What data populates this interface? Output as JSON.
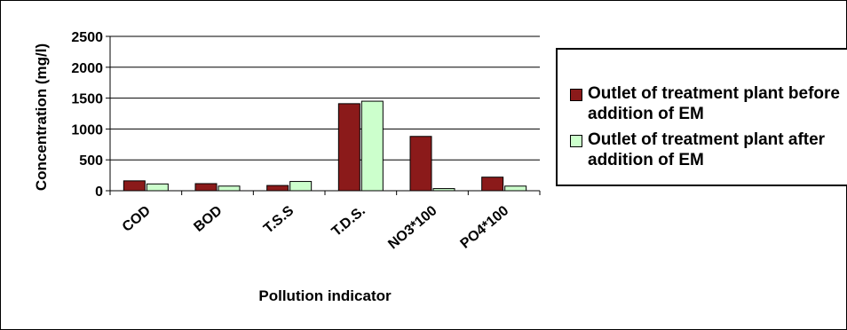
{
  "chart_data": {
    "type": "bar",
    "xlabel": "Pollution indicator",
    "ylabel": "Concentration (mg/l)",
    "ylim": [
      0,
      2500
    ],
    "yticks": [
      "0",
      "500",
      "1000",
      "1500",
      "2000",
      "2500"
    ],
    "grid": "horizontal",
    "legend_position": "right",
    "categories": [
      "COD",
      "BOD",
      "T.S.S",
      "T.D.S.",
      "NO3*100",
      "PO4*100"
    ],
    "series": [
      {
        "name": "Outlet of treatment plant before addition of EM",
        "color": "#8b1a1a",
        "values": [
          160,
          115,
          85,
          1410,
          880,
          220
        ]
      },
      {
        "name": "Outlet of treatment plant after addition of EM",
        "color": "#ccffcc",
        "values": [
          110,
          75,
          150,
          1450,
          35,
          75
        ]
      }
    ]
  }
}
